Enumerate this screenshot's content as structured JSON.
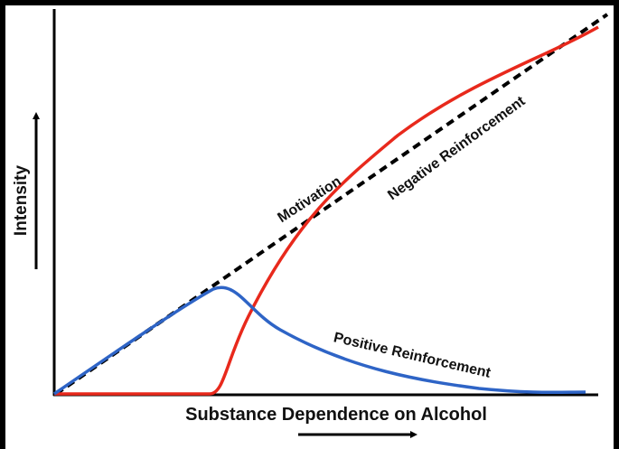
{
  "axes": {
    "y_label": "Intensity",
    "x_label": "Substance Dependence on Alcohol"
  },
  "curves": {
    "motivation": "Motivation",
    "negative": "Negative Reinforcement",
    "positive": "Positive Reinforcement"
  }
}
